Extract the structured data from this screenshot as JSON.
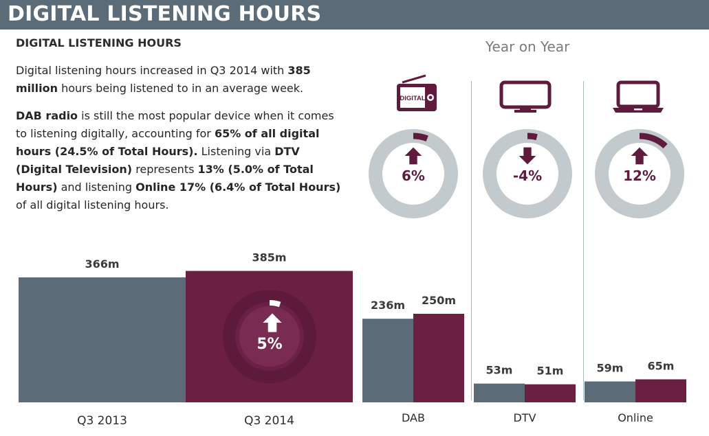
{
  "header": {
    "title": "DIGITAL LISTENING HOURS"
  },
  "text": {
    "subheading": "DIGITAL LISTENING HOURS",
    "p1": [
      {
        "t": "Digital listening hours increased in Q3 2014 with ",
        "b": false
      },
      {
        "t": "385 million",
        "b": true
      },
      {
        "t": " hours being listened to in an average week.",
        "b": false
      }
    ],
    "p2": [
      {
        "t": "DAB radio",
        "b": true
      },
      {
        "t": " is still the most popular device when it comes to listening digitally, accounting for ",
        "b": false
      },
      {
        "t": "65% of all digital hours (24.5% of Total Hours).",
        "b": true
      },
      {
        "t": " Listening via ",
        "b": false
      },
      {
        "t": "DTV (Digital Television)",
        "b": true
      },
      {
        "t": " represents ",
        "b": false
      },
      {
        "t": "13% (5.0% of Total Hours)",
        "b": true
      },
      {
        "t": " and listening ",
        "b": false
      },
      {
        "t": "Online 17% (6.4% of Total Hours)",
        "b": true
      },
      {
        "t": " of all digital listening hours.",
        "b": false
      }
    ],
    "yoy_label": "Year on Year"
  },
  "colors": {
    "q3_2013": "#5b6b77",
    "q3_2014": "#6a1f43",
    "ring_bg": "#c3cacd",
    "ring_accent": "#5f1b3d",
    "header_bg": "#5b6b77"
  },
  "icons": {
    "dab": "digital-radio-icon",
    "dtv": "tv-icon",
    "online": "laptop-icon"
  },
  "chart_data": [
    {
      "type": "bar",
      "categories": [
        "Q3 2013",
        "Q3 2014"
      ],
      "values": [
        366,
        385
      ],
      "value_labels": [
        "366m",
        "385m"
      ],
      "change": {
        "label": "5%",
        "value": 5,
        "direction": "up"
      }
    },
    {
      "type": "bar",
      "categories": [
        "DAB",
        "DTV",
        "Online"
      ],
      "series": [
        {
          "name": "Q3 2013",
          "values": [
            236,
            53,
            59
          ],
          "labels": [
            "236m",
            "53m",
            "59m"
          ]
        },
        {
          "name": "Q3 2014",
          "values": [
            250,
            51,
            65
          ],
          "labels": [
            "250m",
            "51m",
            "65m"
          ]
        }
      ],
      "yoy_change": [
        {
          "category": "DAB",
          "label": "6%",
          "value": 6,
          "direction": "up"
        },
        {
          "category": "DTV",
          "label": "-4%",
          "value": -4,
          "direction": "down"
        },
        {
          "category": "Online",
          "label": "12%",
          "value": 12,
          "direction": "up"
        }
      ]
    }
  ]
}
